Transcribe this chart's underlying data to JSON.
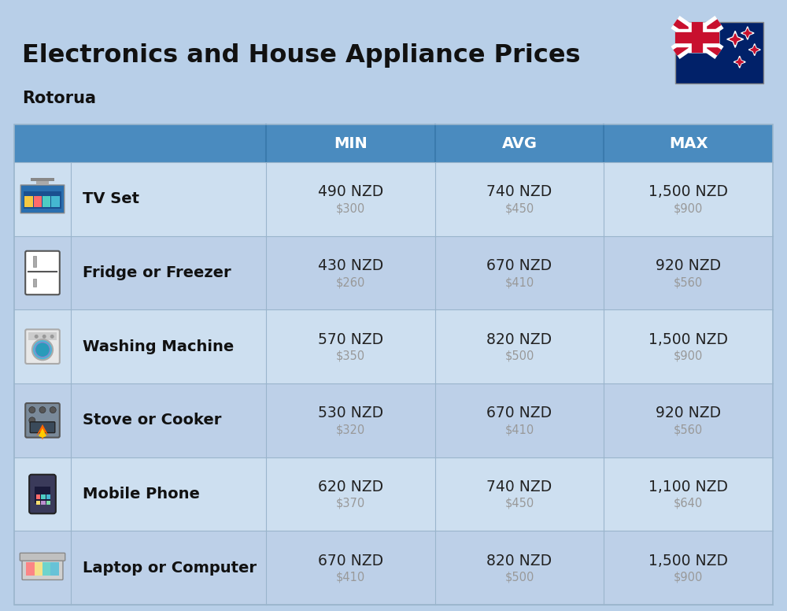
{
  "title": "Electronics and House Appliance Prices",
  "subtitle": "Rotorua",
  "columns": [
    "MIN",
    "AVG",
    "MAX"
  ],
  "rows": [
    {
      "name": "TV Set",
      "min_nzd": "490 NZD",
      "min_usd": "$300",
      "avg_nzd": "740 NZD",
      "avg_usd": "$450",
      "max_nzd": "1,500 NZD",
      "max_usd": "$900"
    },
    {
      "name": "Fridge or Freezer",
      "min_nzd": "430 NZD",
      "min_usd": "$260",
      "avg_nzd": "670 NZD",
      "avg_usd": "$410",
      "max_nzd": "920 NZD",
      "max_usd": "$560"
    },
    {
      "name": "Washing Machine",
      "min_nzd": "570 NZD",
      "min_usd": "$350",
      "avg_nzd": "820 NZD",
      "avg_usd": "$500",
      "max_nzd": "1,500 NZD",
      "max_usd": "$900"
    },
    {
      "name": "Stove or Cooker",
      "min_nzd": "530 NZD",
      "min_usd": "$320",
      "avg_nzd": "670 NZD",
      "avg_usd": "$410",
      "max_nzd": "920 NZD",
      "max_usd": "$560"
    },
    {
      "name": "Mobile Phone",
      "min_nzd": "620 NZD",
      "min_usd": "$370",
      "avg_nzd": "740 NZD",
      "avg_usd": "$450",
      "max_nzd": "1,100 NZD",
      "max_usd": "$640"
    },
    {
      "name": "Laptop or Computer",
      "min_nzd": "670 NZD",
      "min_usd": "$410",
      "avg_nzd": "820 NZD",
      "avg_usd": "$500",
      "max_nzd": "1,500 NZD",
      "max_usd": "$900"
    }
  ],
  "bg_color": "#b8cfe8",
  "header_color": "#4a8bbf",
  "row_color_light": "#cddff0",
  "row_color_dark": "#bdd0e8",
  "header_text_color": "#ffffff",
  "item_name_color": "#111111",
  "nzd_color": "#222222",
  "usd_color": "#999999",
  "title_color": "#111111",
  "subtitle_color": "#111111",
  "col_separator_color": "#9ab5cc"
}
